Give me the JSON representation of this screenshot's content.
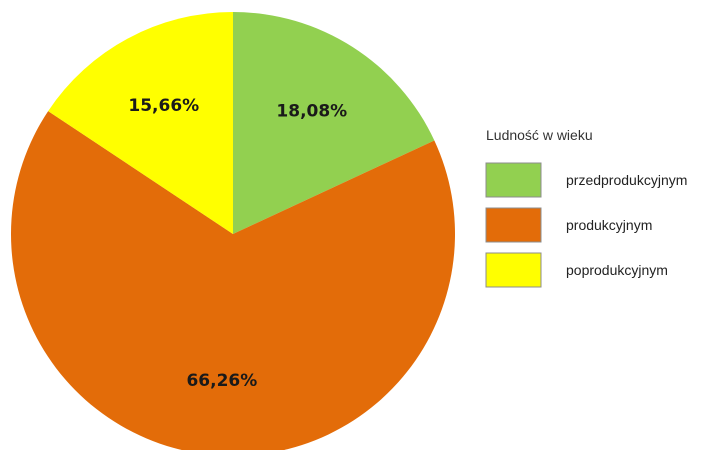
{
  "chart_data": {
    "type": "pie",
    "title": "",
    "legend_title": "Ludność w wieku",
    "legend_position": "right",
    "start_angle_deg": 0,
    "direction": "clockwise",
    "slices": [
      {
        "name": "przedprodukcyjnym",
        "value": 18.08,
        "label": "18,08%",
        "color": "#92d050"
      },
      {
        "name": "produkcyjnym",
        "value": 66.26,
        "label": "66,26%",
        "color": "#e36c09"
      },
      {
        "name": "poprodukcyjnym",
        "value": 15.66,
        "label": "15,66%",
        "color": "#ffff00"
      }
    ]
  }
}
